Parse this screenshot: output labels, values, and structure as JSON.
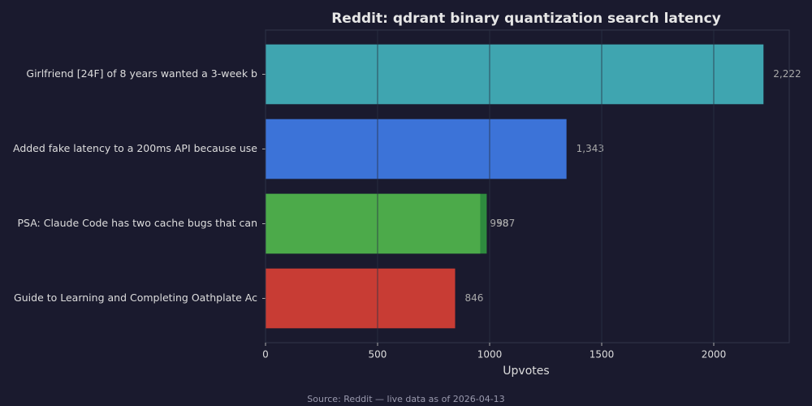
{
  "chart_data": {
    "type": "barh",
    "title": "Reddit: qdrant binary quantization search latency",
    "x_label": "Upvotes",
    "source": "Source: Reddit — live data as of 2026-04-13",
    "categories": [
      "Girlfriend [24F] of 8 years wanted a 3-week b",
      "Added fake latency to a 200ms API because use",
      "PSA: Claude Code has two cache bugs that can ",
      "Guide to Learning and Completing Oathplate Ac"
    ],
    "series": [
      {
        "colors": [
          "#3fa5b0",
          "#3c73d8",
          "#4caa4a",
          "#c83c34"
        ],
        "values": [
          2222,
          1343,
          958,
          846
        ],
        "value_labels": [
          "2,222",
          "1,343",
          "958",
          "846"
        ]
      },
      {
        "color": "#2e8b3e",
        "values": [
          null,
          null,
          987,
          null
        ],
        "value_labels": [
          null,
          null,
          "987",
          null
        ]
      }
    ],
    "xlim": [
      0,
      2337
    ],
    "xticks": [
      0,
      500,
      1000,
      1500,
      2000
    ],
    "grid": true
  }
}
